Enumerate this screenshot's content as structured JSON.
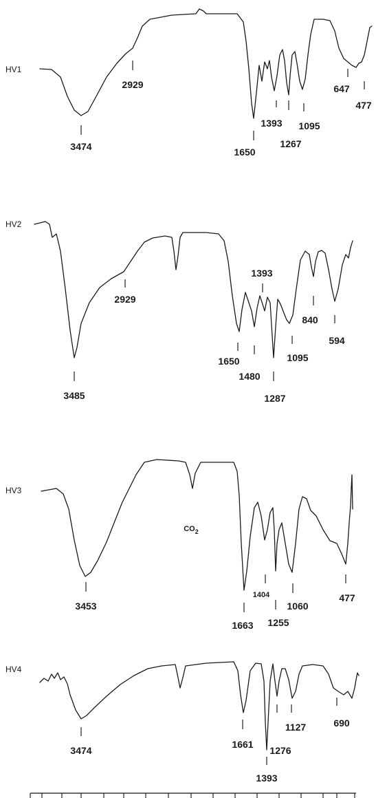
{
  "chart_data": {
    "type": "line",
    "title": "",
    "xlabel": "",
    "ylabel": "",
    "spectra": [
      {
        "name": "HV1",
        "peaks": [
          {
            "label": "3474"
          },
          {
            "label": "2929"
          },
          {
            "label": "1650"
          },
          {
            "label": "1393"
          },
          {
            "label": "1267"
          },
          {
            "label": "1095"
          },
          {
            "label": "647"
          },
          {
            "label": "477"
          }
        ]
      },
      {
        "name": "HV2",
        "peaks": [
          {
            "label": "3485"
          },
          {
            "label": "2929"
          },
          {
            "label": "1650"
          },
          {
            "label": "1480"
          },
          {
            "label": "1393"
          },
          {
            "label": "1287"
          },
          {
            "label": "1095"
          },
          {
            "label": "840"
          },
          {
            "label": "594"
          }
        ]
      },
      {
        "name": "HV3",
        "peaks": [
          {
            "label": "3453"
          },
          {
            "label": "CO2"
          },
          {
            "label": "1663"
          },
          {
            "label": "1404"
          },
          {
            "label": "1255"
          },
          {
            "label": "1060"
          },
          {
            "label": "477"
          }
        ]
      },
      {
        "name": "HV4",
        "peaks": [
          {
            "label": "3474"
          },
          {
            "label": "1661"
          },
          {
            "label": "1393"
          },
          {
            "label": "1276"
          },
          {
            "label": "1127"
          },
          {
            "label": "690"
          }
        ]
      }
    ]
  }
}
